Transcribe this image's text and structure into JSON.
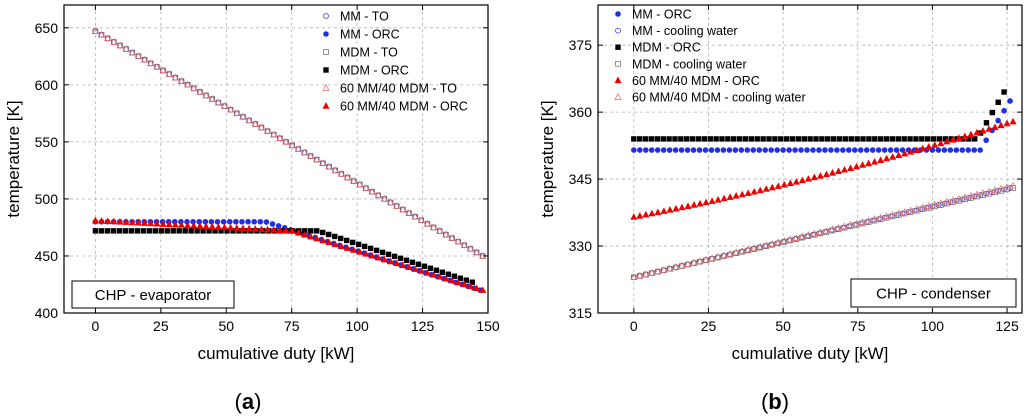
{
  "chart_data": [
    {
      "type": "scatter",
      "panel_label": "a",
      "xlabel": "cumulative duty [kW]",
      "ylabel": "temperature [K]",
      "xlim": [
        -12,
        150
      ],
      "ylim": [
        400,
        670
      ],
      "xticks": [
        0,
        25,
        50,
        75,
        100,
        125,
        150
      ],
      "yticks": [
        400,
        450,
        500,
        550,
        600,
        650
      ],
      "grid": true,
      "legend_position": "top-right",
      "annotation": "CHP - evaporator",
      "n_points": 64,
      "series": [
        {
          "name": "MM - TO",
          "color": "#3333dd",
          "marker": "circle",
          "filled": false,
          "segments": [
            [
              0,
              647
            ],
            [
              148,
              450
            ]
          ]
        },
        {
          "name": "MM - ORC",
          "color": "#1e2fe6",
          "marker": "circle",
          "filled": true,
          "segments": [
            [
              0,
              480
            ],
            [
              65,
              480
            ],
            [
              147,
              420
            ]
          ]
        },
        {
          "name": "MDM - TO",
          "color": "#666666",
          "marker": "square",
          "filled": false,
          "segments": [
            [
              0,
              647
            ],
            [
              148,
              450
            ]
          ]
        },
        {
          "name": "MDM - ORC",
          "color": "#000000",
          "marker": "square",
          "filled": true,
          "segments": [
            [
              0,
              472
            ],
            [
              85,
              472
            ],
            [
              144,
              427
            ]
          ]
        },
        {
          "name": "60 MM/40 MDM - TO",
          "color": "#ee6666",
          "marker": "triangle",
          "filled": false,
          "segments": [
            [
              0,
              647
            ],
            [
              148,
              450
            ]
          ]
        },
        {
          "name": "60 MM/40 MDM - ORC",
          "color": "#ee0000",
          "marker": "triangle",
          "filled": true,
          "segments": [
            [
              0,
              481
            ],
            [
              75,
              472
            ],
            [
              148,
              420
            ]
          ]
        }
      ]
    },
    {
      "type": "scatter",
      "panel_label": "b",
      "xlabel": "cumulative duty [kW]",
      "ylabel": "temperature [K]",
      "xlim": [
        -12,
        130
      ],
      "ylim": [
        315,
        384
      ],
      "xticks": [
        0,
        25,
        50,
        75,
        100,
        125
      ],
      "yticks": [
        315,
        330,
        345,
        360,
        375
      ],
      "grid": true,
      "legend_position": "top-left",
      "annotation": "CHP - condenser",
      "n_points": 64,
      "series": [
        {
          "name": "MM - ORC",
          "color": "#1e2fe6",
          "marker": "circle",
          "filled": true,
          "segments": [
            [
              0,
              351.5
            ],
            [
              116,
              351.5
            ],
            [
              126,
              362.5
            ]
          ]
        },
        {
          "name": "MM - cooling water",
          "color": "#3333dd",
          "marker": "circle",
          "filled": false,
          "segments": [
            [
              0,
              323
            ],
            [
              126,
              343
            ]
          ]
        },
        {
          "name": "MDM - ORC",
          "color": "#000000",
          "marker": "square",
          "filled": true,
          "segments": [
            [
              0,
              354
            ],
            [
              115,
              354
            ],
            [
              124,
              364.5
            ]
          ]
        },
        {
          "name": "MDM - cooling water",
          "color": "#666666",
          "marker": "square",
          "filled": false,
          "segments": [
            [
              0,
              323
            ],
            [
              127,
              343
            ]
          ]
        },
        {
          "name": "60 MM/40 MDM - ORC",
          "color": "#ee0000",
          "marker": "triangle",
          "filled": true,
          "curve": [
            336.5,
            0.127,
            0.000325
          ],
          "x_end": 127
        },
        {
          "name": "60 MM/40 MDM - cooling water",
          "color": "#ee6666",
          "marker": "triangle",
          "filled": false,
          "segments": [
            [
              0,
              323
            ],
            [
              127,
              343.5
            ]
          ]
        }
      ]
    }
  ]
}
